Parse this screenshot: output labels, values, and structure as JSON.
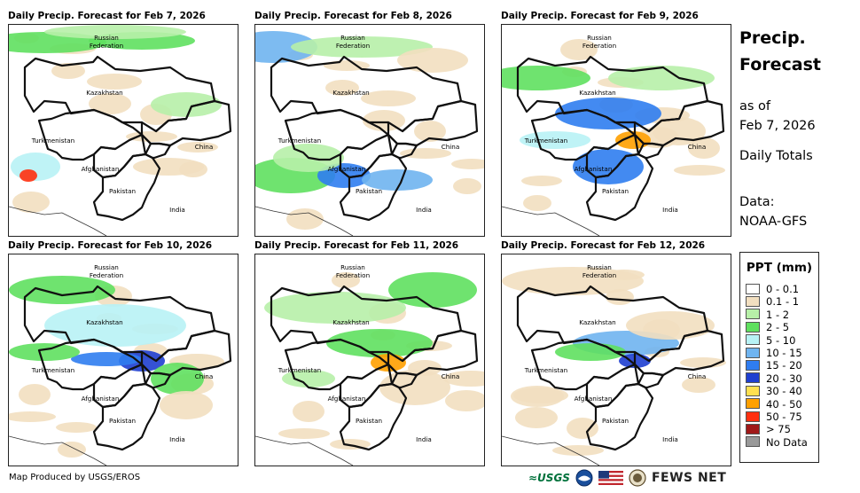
{
  "panels": [
    {
      "title": "Daily Precip. Forecast for Feb 7, 2026"
    },
    {
      "title": "Daily Precip. Forecast for Feb 8, 2026"
    },
    {
      "title": "Daily Precip. Forecast for Feb 9, 2026"
    },
    {
      "title": "Daily Precip. Forecast for Feb 10, 2026"
    },
    {
      "title": "Daily Precip. Forecast for Feb 11, 2026"
    },
    {
      "title": "Daily Precip. Forecast for Feb 12, 2026"
    }
  ],
  "map_labels": {
    "russia_line1": "Russian",
    "russia_line2": "Federation",
    "kazakhstan": "Kazakhstan",
    "turkmenistan": "Turkmenistan",
    "china": "China",
    "afghanistan": "Afghanistan",
    "pakistan": "Pakistan",
    "india": "India"
  },
  "sidebar": {
    "title_line1": "Precip.",
    "title_line2": "Forecast",
    "asof_line1": "as of",
    "asof_line2": "Feb 7, 2026",
    "totals": "Daily Totals",
    "data_line1": "Data:",
    "data_line2": "NOAA-GFS"
  },
  "legend": {
    "title": "PPT (mm)",
    "items": [
      {
        "label": "0 - 0.1",
        "color": "#ffffff"
      },
      {
        "label": "0.1 - 1",
        "color": "#f2dfc0"
      },
      {
        "label": "1 - 2",
        "color": "#b7f0a8"
      },
      {
        "label": "2 - 5",
        "color": "#5fe05f"
      },
      {
        "label": "5 - 10",
        "color": "#b8f2f5"
      },
      {
        "label": "10 - 15",
        "color": "#6fb4f0"
      },
      {
        "label": "15 - 20",
        "color": "#2f7df0"
      },
      {
        "label": "20 - 30",
        "color": "#1f3fd0"
      },
      {
        "label": "30 - 40",
        "color": "#ffe050"
      },
      {
        "label": "40 - 50",
        "color": "#ffa000"
      },
      {
        "label": "50 - 75",
        "color": "#ff3010"
      },
      {
        "label": "> 75",
        "color": "#a01818"
      },
      {
        "label": "No Data",
        "color": "#999999"
      }
    ]
  },
  "footer": {
    "credit": "Map Produced by USGS/EROS",
    "usgs_logo": "≈USGS",
    "fews_net": "FEWS NET"
  }
}
